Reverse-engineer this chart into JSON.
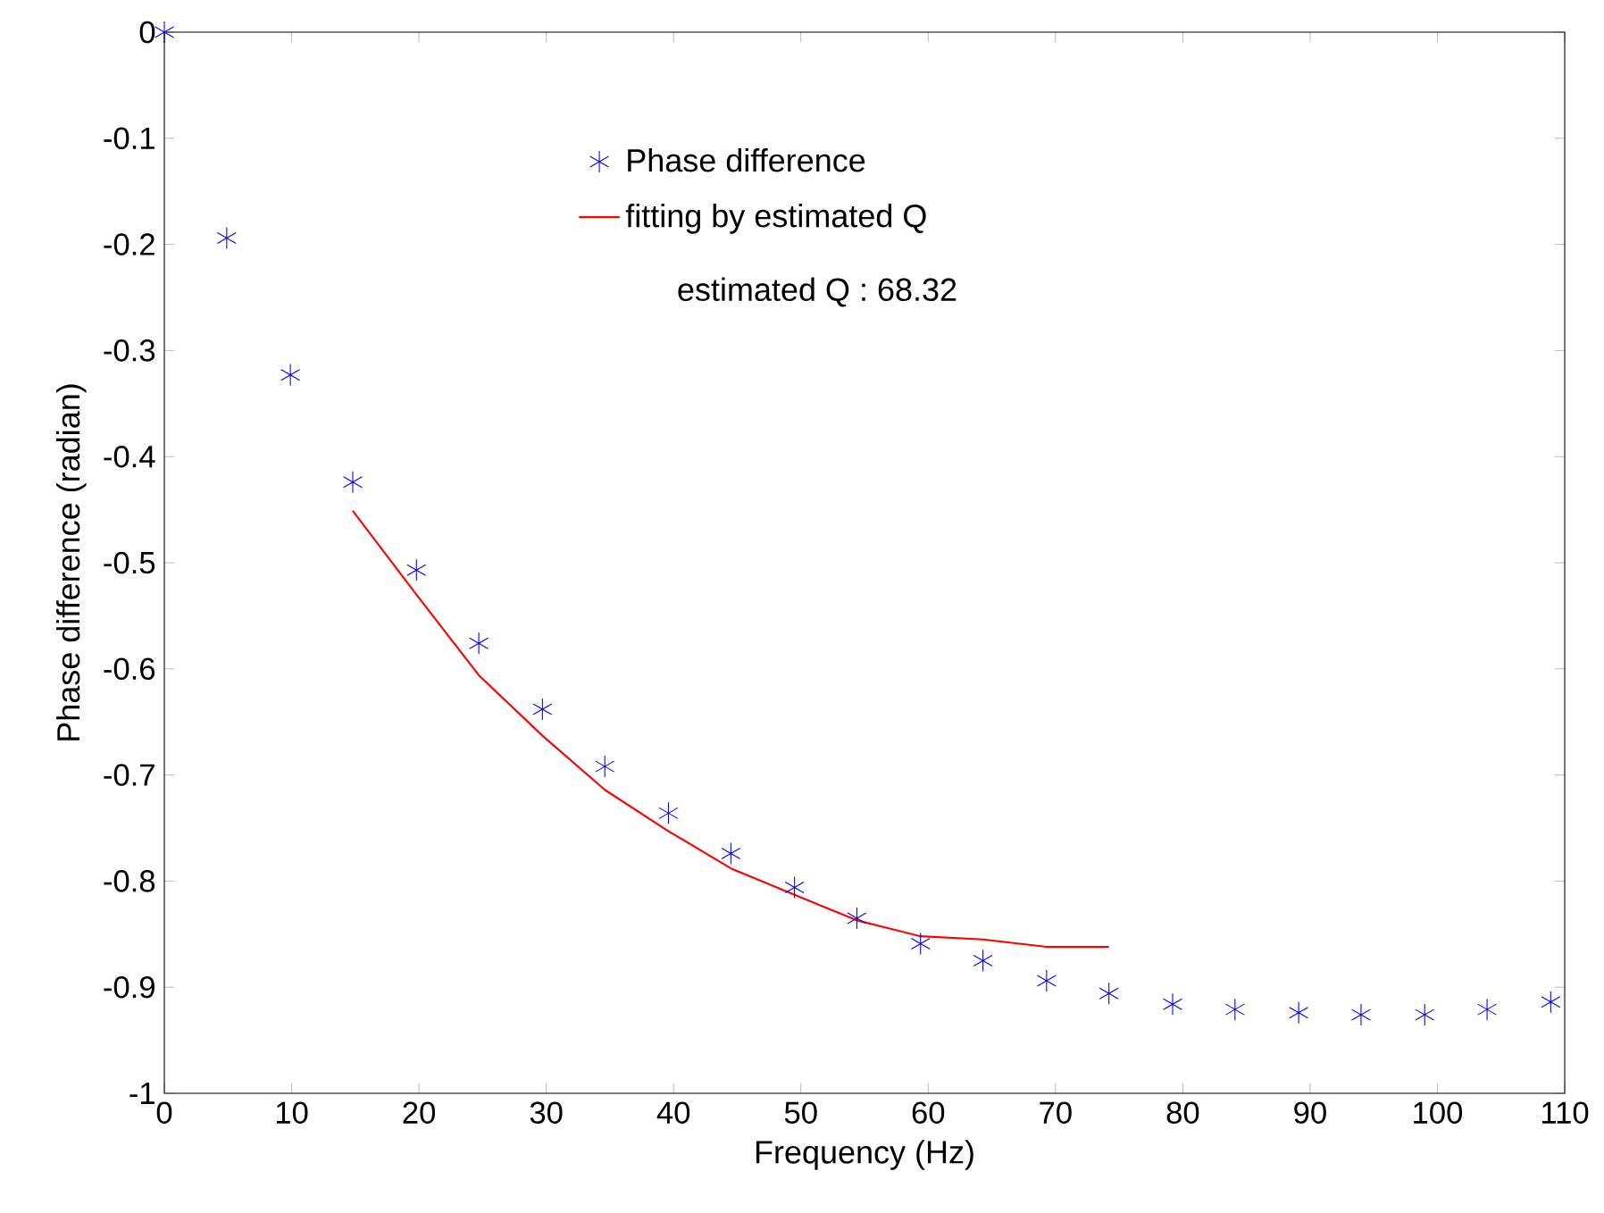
{
  "chart_data": {
    "type": "scatter",
    "xlabel": "Frequency (Hz)",
    "ylabel": "Phase difference (radian)",
    "series": [
      {
        "name": "Phase difference",
        "marker": "cross",
        "color": "#0000ff",
        "x": [
          0,
          4.9,
          9.9,
          14.8,
          19.8,
          24.7,
          29.7,
          34.6,
          39.6,
          44.5,
          49.5,
          54.4,
          59.4,
          64.3,
          69.3,
          74.2,
          79.2,
          84.1,
          89.1,
          94.0,
          99.0,
          103.9,
          108.9
        ],
        "values": [
          0,
          -0.194,
          -0.323,
          -0.424,
          -0.507,
          -0.576,
          -0.638,
          -0.692,
          -0.736,
          -0.774,
          -0.806,
          -0.835,
          -0.859,
          -0.875,
          -0.894,
          -0.906,
          -0.916,
          -0.921,
          -0.924,
          -0.926,
          -0.926,
          -0.921,
          -0.914
        ]
      },
      {
        "name": "fitting by estimated Q",
        "type": "line",
        "marker": "none",
        "line_style": "solid",
        "color": "#ff0000",
        "x": [
          14.8,
          19.8,
          24.7,
          29.7,
          34.6,
          39.6,
          44.5,
          49.5,
          54.4,
          59.4,
          64.3,
          69.3,
          74.2
        ],
        "values": [
          -0.451,
          -0.53,
          -0.606,
          -0.663,
          -0.714,
          -0.753,
          -0.788,
          -0.813,
          -0.837,
          -0.852,
          -0.855,
          -0.862,
          -0.862
        ]
      }
    ],
    "annotations": [
      "estimated Q  : 68.32"
    ],
    "legend": "top",
    "xlim": [
      0,
      110
    ],
    "xticks": [
      0,
      10,
      20,
      30,
      40,
      50,
      60,
      70,
      80,
      90,
      100,
      110
    ],
    "ylim": [
      -1,
      0
    ],
    "yticks": [
      -1,
      -0.9,
      -0.8,
      -0.7,
      -0.6,
      -0.5,
      -0.4,
      -0.3,
      -0.2,
      -0.1,
      0
    ],
    "grid": false
  }
}
